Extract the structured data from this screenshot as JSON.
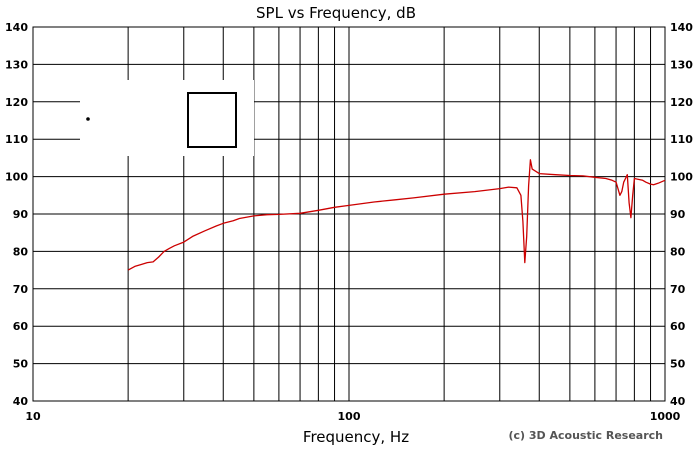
{
  "chart_data": {
    "type": "line",
    "title": "SPL vs Frequency, dB",
    "xlabel": "Frequency, Hz",
    "ylabel": "",
    "xscale": "log",
    "xlim": [
      10,
      1000
    ],
    "ylim": [
      40,
      140
    ],
    "x_tick_labels": [
      "10",
      "100",
      "1000"
    ],
    "y_tick_labels": [
      "40",
      "50",
      "60",
      "70",
      "80",
      "90",
      "100",
      "110",
      "120",
      "130",
      "140"
    ],
    "grid": true,
    "legend": "none",
    "credit": "(c) 3D Acoustic Research",
    "series": [
      {
        "color": "#cc0000",
        "x": [
          20,
          21,
          22,
          23,
          24,
          25,
          26,
          27,
          28,
          30,
          32,
          35,
          38,
          40,
          43,
          45,
          50,
          55,
          60,
          70,
          80,
          90,
          100,
          120,
          140,
          160,
          200,
          250,
          300,
          320,
          340,
          350,
          355,
          360,
          365,
          370,
          375,
          380,
          400,
          450,
          500,
          550,
          600,
          650,
          680,
          700,
          720,
          730,
          740,
          750,
          760,
          770,
          780,
          790,
          800,
          820,
          850,
          870,
          900,
          920,
          950,
          1000
        ],
        "y": [
          75.0,
          76.0,
          76.5,
          77.0,
          77.2,
          78.5,
          80.0,
          80.8,
          81.5,
          82.5,
          84.0,
          85.5,
          86.8,
          87.5,
          88.2,
          88.8,
          89.5,
          89.8,
          89.9,
          90.2,
          91.0,
          91.8,
          92.3,
          93.2,
          93.8,
          94.3,
          95.3,
          96.0,
          96.8,
          97.2,
          97.0,
          95.0,
          88.0,
          77.0,
          84.0,
          97.5,
          104.5,
          102.0,
          100.8,
          100.5,
          100.3,
          100.2,
          99.8,
          99.5,
          99.0,
          98.5,
          95.0,
          96.0,
          98.5,
          99.5,
          100.5,
          93.0,
          89.0,
          95.0,
          99.5,
          99.3,
          99.0,
          98.5,
          98.0,
          97.8,
          98.2,
          99.0
        ]
      }
    ]
  }
}
